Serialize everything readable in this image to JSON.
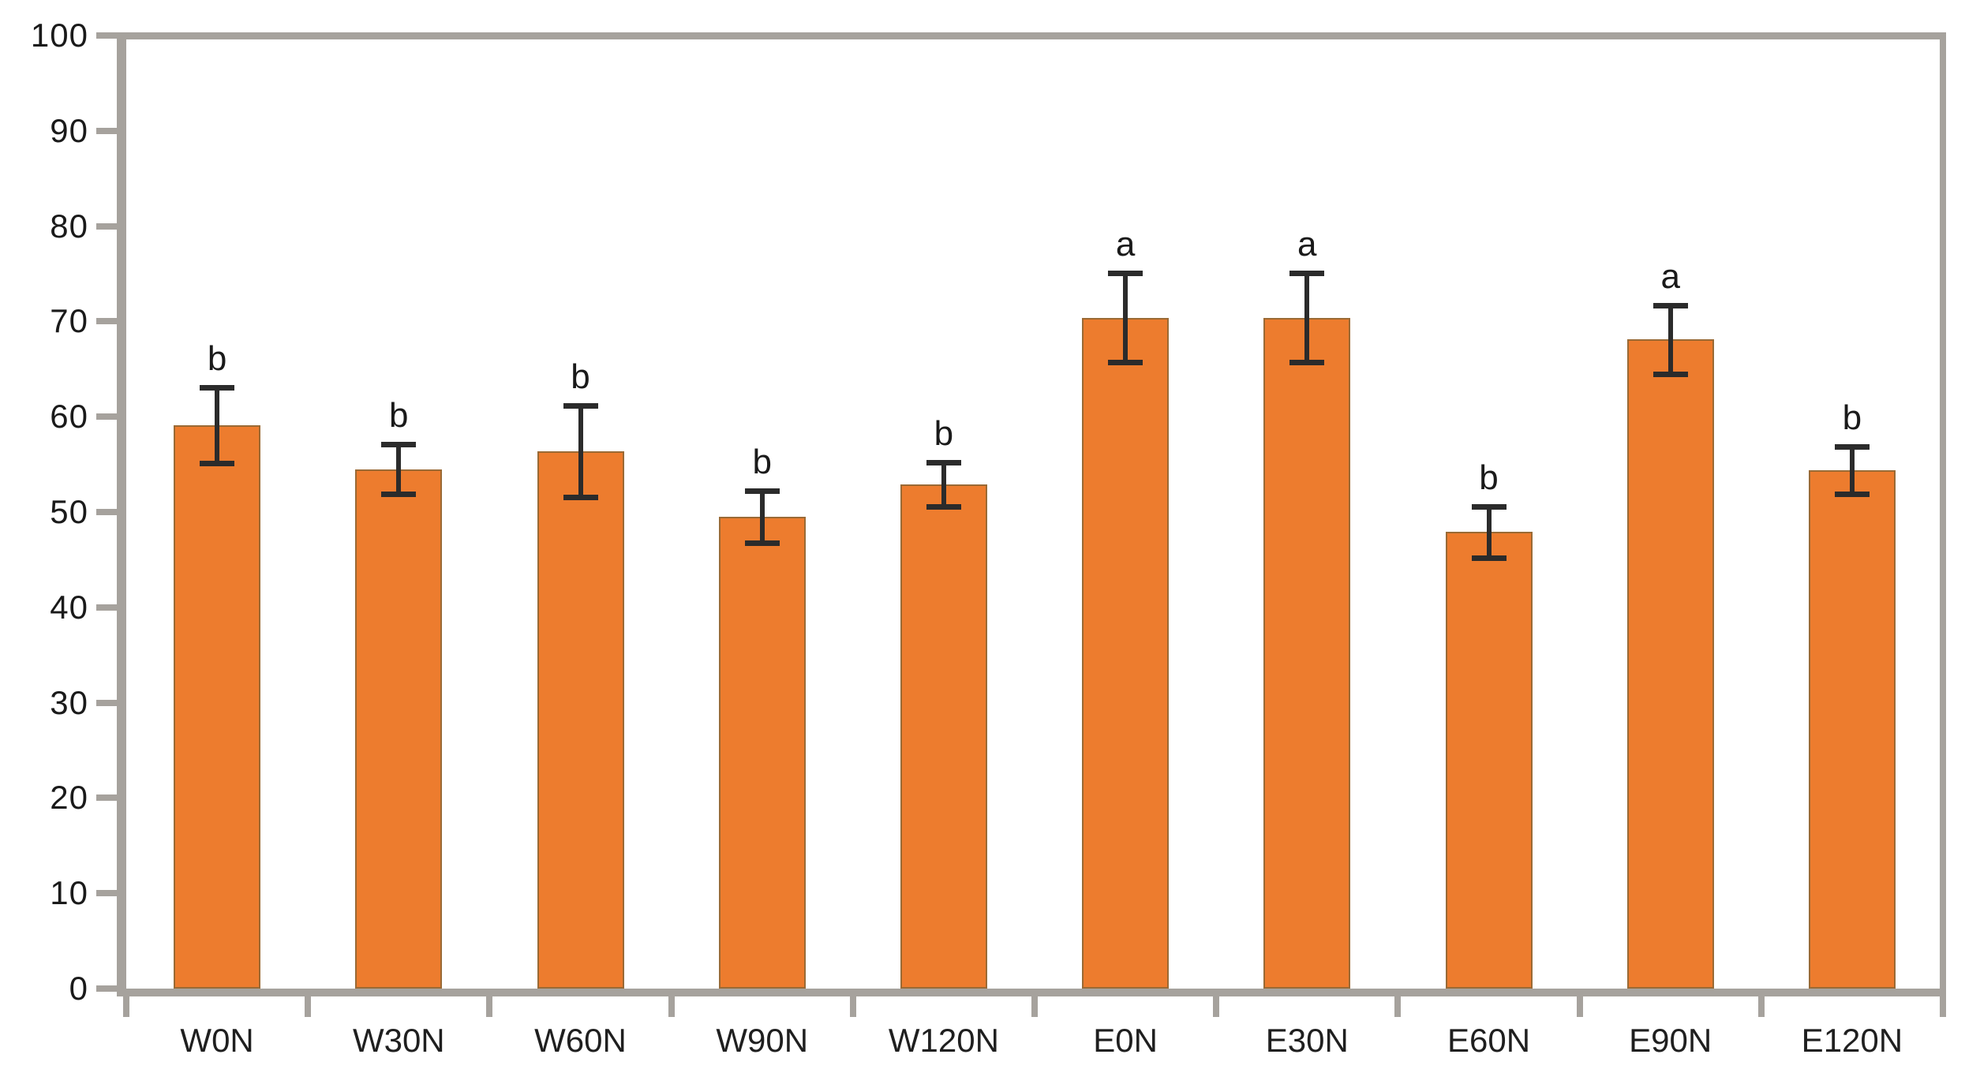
{
  "figure": {
    "background_color": "#ffffff"
  },
  "chart_data": {
    "type": "bar",
    "title": "",
    "xlabel": "",
    "ylabel": "",
    "categories": [
      "W0N",
      "W30N",
      "W60N",
      "W90N",
      "W120N",
      "E0N",
      "E30N",
      "E60N",
      "E90N",
      "E120N"
    ],
    "values": [
      59.1,
      54.5,
      56.4,
      49.5,
      52.9,
      70.4,
      70.4,
      47.9,
      68.1,
      54.4
    ],
    "error_bars": [
      4.0,
      2.6,
      4.8,
      2.7,
      2.3,
      4.7,
      4.7,
      2.7,
      3.6,
      2.5
    ],
    "significance_letters": [
      "b",
      "b",
      "b",
      "b",
      "b",
      "a",
      "a",
      "b",
      "a",
      "b"
    ],
    "ylim": [
      0,
      100
    ],
    "ytick_step": 10,
    "ytick_labels": [
      "0",
      "10",
      "20",
      "30",
      "40",
      "50",
      "60",
      "70",
      "80",
      "90",
      "100"
    ],
    "grid": "off",
    "legend": "none",
    "colors": {
      "bar_fill": "#ED7C2E",
      "bar_outline": "#9A6A35",
      "axis_line": "#A6A29D",
      "error_bar": "#2B2B2B",
      "tick_text": "#1A1A1A"
    }
  }
}
